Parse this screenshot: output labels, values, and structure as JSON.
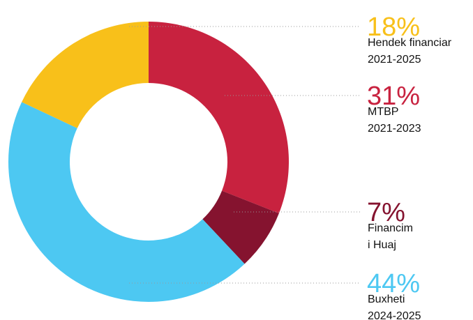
{
  "chart_data": {
    "type": "donut",
    "categories": [
      [
        "MTBP",
        "2021-2023"
      ],
      [
        "Financim",
        "i Huaj"
      ],
      [
        "Buxheti",
        "2024-2025"
      ],
      [
        "Hendek financiar",
        "2021-2025"
      ]
    ],
    "values": [
      31,
      7,
      44,
      18
    ],
    "value_labels": [
      "31%",
      "7%",
      "44%",
      "18%"
    ],
    "colors": [
      "#c8223f",
      "#85132f",
      "#4dc8f2",
      "#f8c01a"
    ]
  }
}
